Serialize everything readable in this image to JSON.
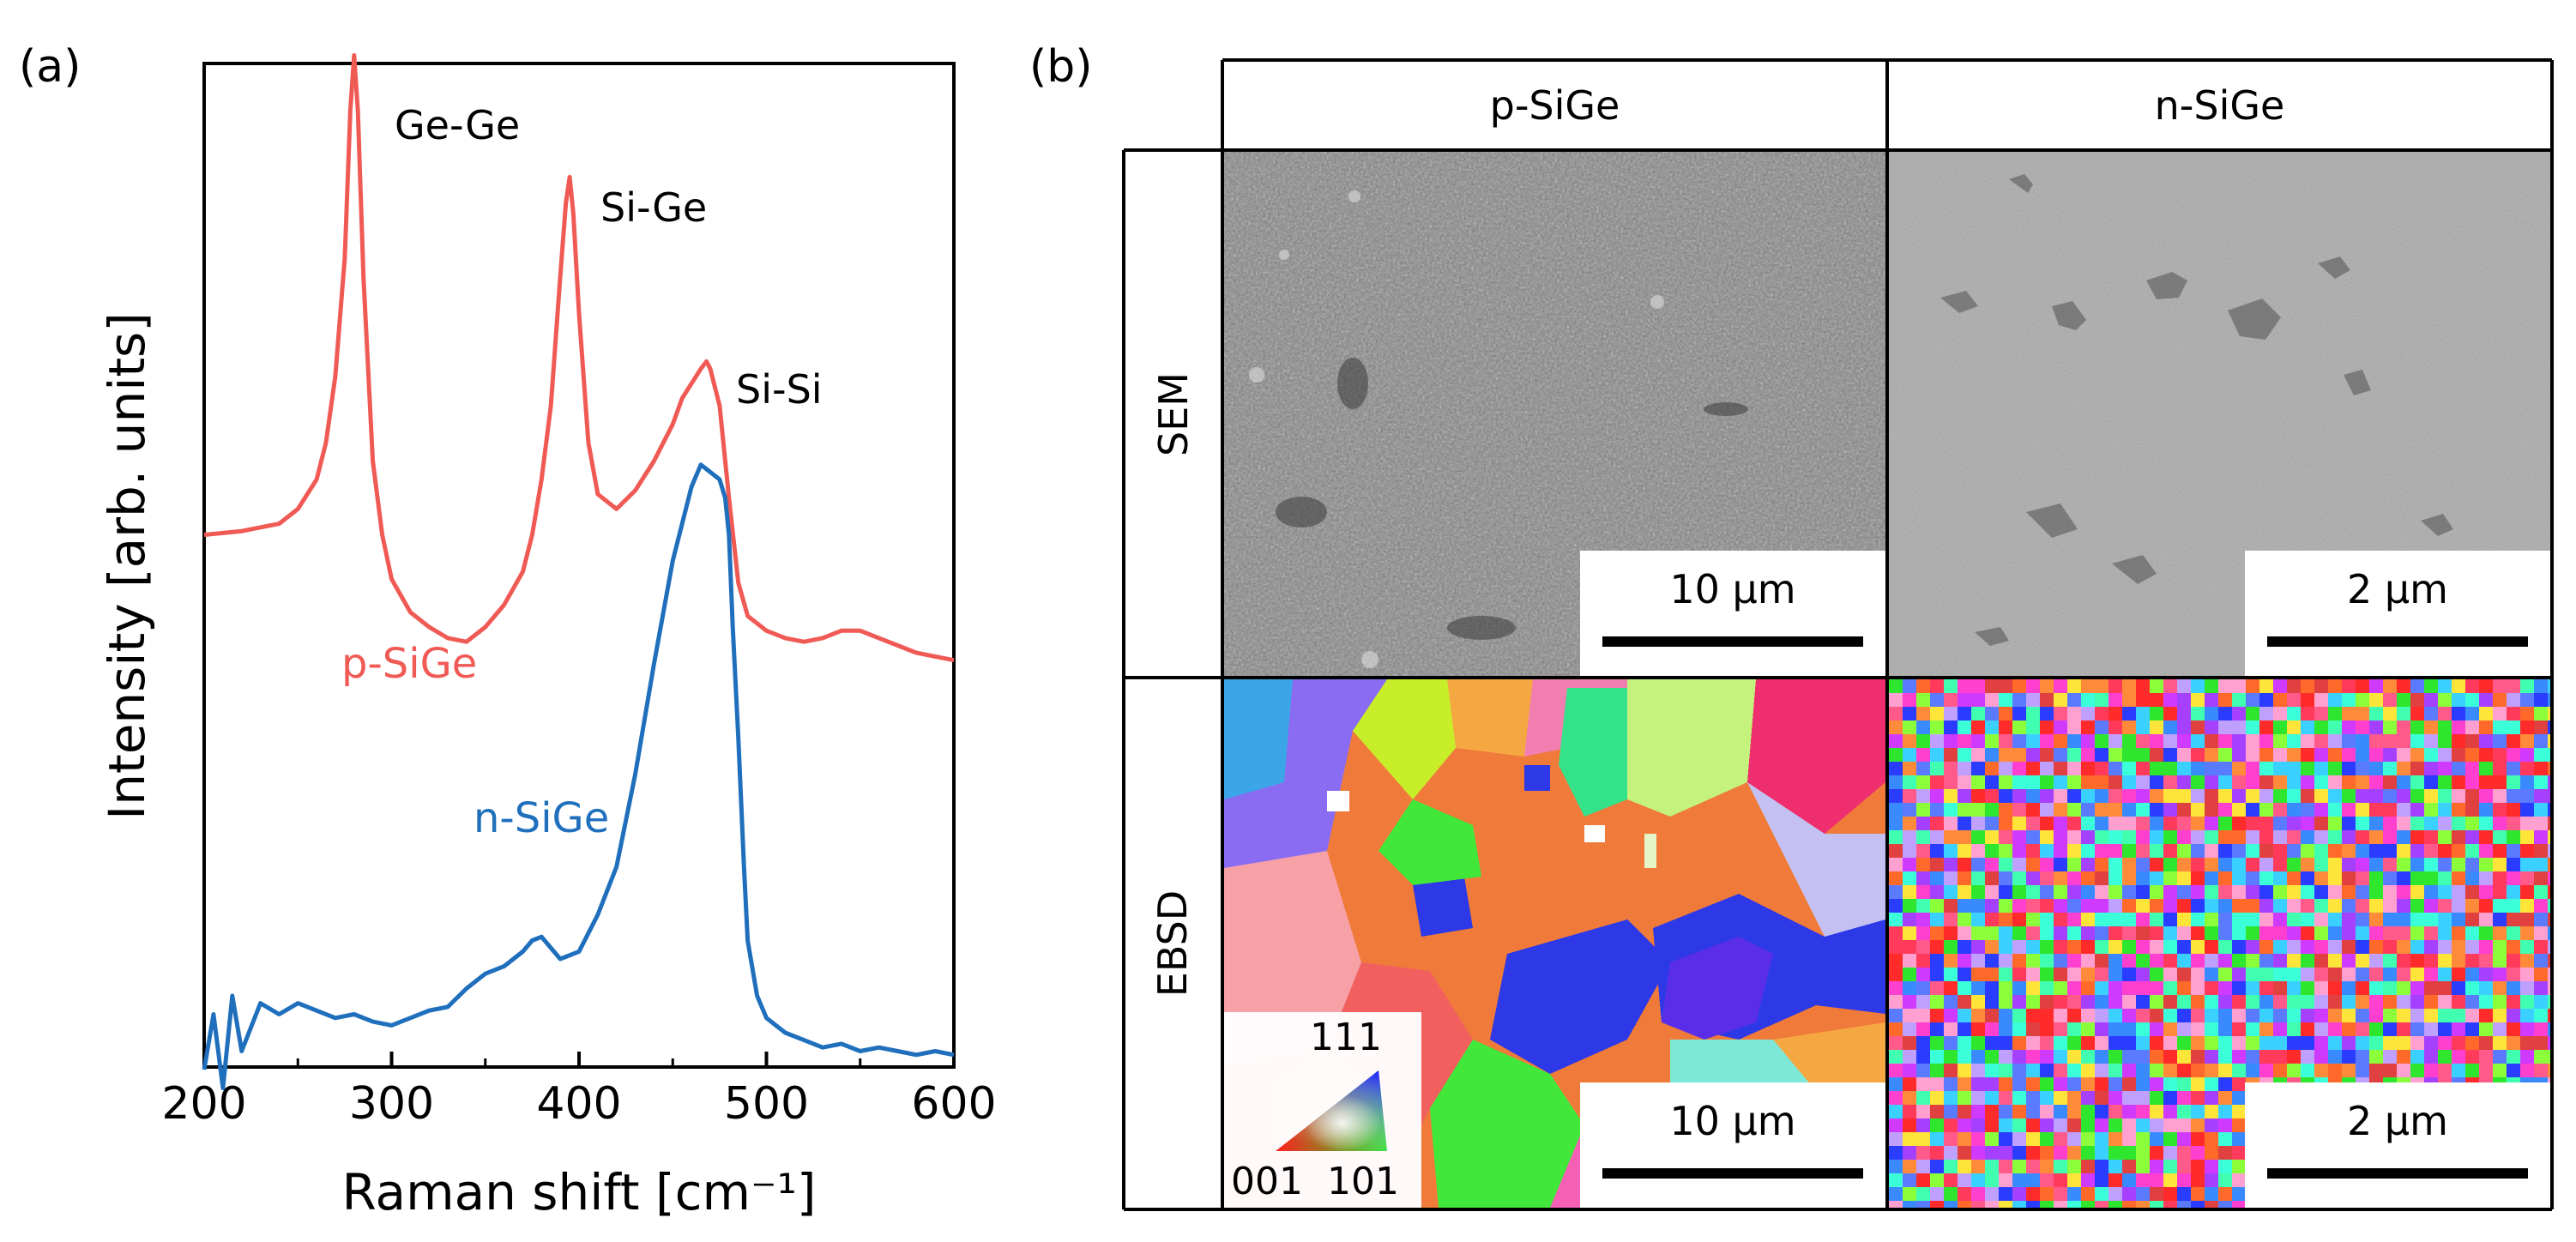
{
  "panel_a": {
    "label": "(a)",
    "chart_data": {
      "type": "line",
      "title": "",
      "xlabel": "Raman shift [cm⁻¹]",
      "ylabel": "Intensity [arb. units]",
      "xlim": [
        200,
        600
      ],
      "x_ticks": [
        "200",
        "300",
        "400",
        "500",
        "600"
      ],
      "y_ticks_shown": false,
      "grid": false,
      "series": [
        {
          "name": "p-SiGe",
          "color": "#f05a55",
          "label_text": "p-SiGe",
          "x": [
            200,
            220,
            240,
            250,
            260,
            265,
            270,
            275,
            278,
            280,
            282,
            285,
            290,
            295,
            300,
            310,
            320,
            330,
            340,
            350,
            360,
            370,
            375,
            380,
            385,
            390,
            393,
            395,
            397,
            400,
            405,
            410,
            420,
            430,
            440,
            450,
            455,
            460,
            465,
            468,
            470,
            475,
            480,
            485,
            490,
            500,
            510,
            520,
            530,
            540,
            550,
            560,
            570,
            580,
            590,
            600
          ],
          "values": [
            0.55,
            0.56,
            0.58,
            0.62,
            0.7,
            0.8,
            0.98,
            1.3,
            1.7,
            1.85,
            1.7,
            1.25,
            0.75,
            0.55,
            0.43,
            0.34,
            0.3,
            0.27,
            0.26,
            0.3,
            0.36,
            0.45,
            0.55,
            0.7,
            0.9,
            1.25,
            1.45,
            1.52,
            1.42,
            1.15,
            0.8,
            0.66,
            0.62,
            0.67,
            0.75,
            0.85,
            0.92,
            0.96,
            1.0,
            1.02,
            1.0,
            0.9,
            0.65,
            0.42,
            0.33,
            0.29,
            0.27,
            0.26,
            0.27,
            0.29,
            0.29,
            0.27,
            0.25,
            0.23,
            0.22,
            0.21
          ]
        },
        {
          "name": "n-SiGe",
          "color": "#1f6fbd",
          "label_text": "n-SiGe",
          "x": [
            200,
            205,
            210,
            215,
            220,
            230,
            240,
            250,
            260,
            270,
            280,
            290,
            300,
            310,
            320,
            330,
            340,
            350,
            360,
            370,
            375,
            380,
            385,
            390,
            400,
            410,
            420,
            430,
            440,
            450,
            460,
            465,
            470,
            475,
            478,
            480,
            482,
            485,
            488,
            490,
            495,
            500,
            505,
            510,
            520,
            530,
            540,
            550,
            560,
            570,
            580,
            590,
            600
          ],
          "values": [
            -0.9,
            -0.75,
            -0.95,
            -0.7,
            -0.85,
            -0.72,
            -0.75,
            -0.72,
            -0.74,
            -0.76,
            -0.75,
            -0.77,
            -0.78,
            -0.76,
            -0.74,
            -0.73,
            -0.68,
            -0.64,
            -0.62,
            -0.58,
            -0.55,
            -0.54,
            -0.57,
            -0.6,
            -0.58,
            -0.48,
            -0.35,
            -0.1,
            0.2,
            0.48,
            0.68,
            0.74,
            0.72,
            0.7,
            0.65,
            0.55,
            0.3,
            0.0,
            -0.35,
            -0.55,
            -0.7,
            -0.76,
            -0.78,
            -0.8,
            -0.82,
            -0.84,
            -0.83,
            -0.85,
            -0.84,
            -0.85,
            -0.86,
            -0.85,
            -0.86
          ]
        }
      ],
      "annotations": [
        "Ge-Ge",
        "Si-Ge",
        "Si-Si"
      ]
    }
  },
  "panel_b": {
    "label": "(b)",
    "columns": [
      "p-SiGe",
      "n-SiGe"
    ],
    "rows": [
      "SEM",
      "EBSD"
    ],
    "scale_bars": {
      "sem_p": "10 µm",
      "sem_n": "2 µm",
      "ebsd_p": "10 µm",
      "ebsd_n": "2 µm"
    },
    "ipf_legend": {
      "top": "111",
      "bottom_left": "001",
      "bottom_right": "101"
    }
  }
}
